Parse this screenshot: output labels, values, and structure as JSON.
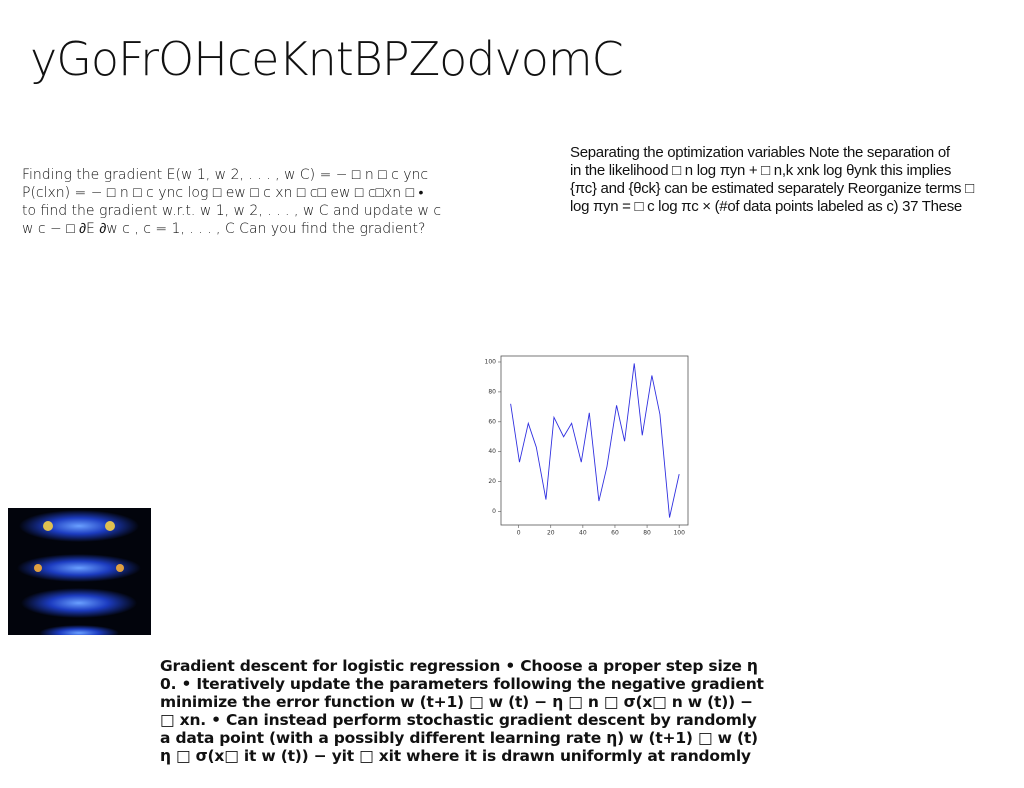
{
  "title": "yGoFrOHceKntBPZodvomC",
  "left_text": [
    "Finding the gradient E(w 1, w 2, . . . , w C) = − □ n □ c ync",
    "P(clxn) = − □ n □ c ync log □ ew □ c xn □ c□ ew □ c□xn □ •",
    "to find the gradient w.r.t. w 1, w 2, . . . , w C and update w c",
    "w c − □ ∂E ∂w c , c = 1, . . . , C Can you find the gradient?"
  ],
  "right_text": [
    "Separating the optimization variables Note the separation of",
    "in the likelihood □ n log πyn + □ n,k xnk log θynk this implies",
    "{πc} and {θck} can be estimated separately Reorganize terms □",
    "log πyn = □ c log πc × (#of data points labeled as c) 37 These"
  ],
  "bottom_text": [
    "Gradient descent for logistic regression • Choose a proper step size η",
    "0. • Iteratively update the parameters following the negative gradient",
    "minimize the error function w (t+1) □ w (t) − η □ n □ σ(x□ n w (t)) −",
    "□ xn. • Can instead perform stochastic gradient descent by randomly",
    "a data point (with a possibly different learning rate η) w (t+1) □ w (t)",
    "η □ σ(x□ it w (t)) − yit □ xit where it is drawn uniformly at randomly"
  ],
  "chart_data": {
    "type": "line",
    "x": [
      -5,
      0.5,
      6,
      11,
      17,
      22,
      28,
      33,
      39,
      44,
      50,
      55,
      61,
      66,
      72,
      77,
      83,
      88,
      94,
      100
    ],
    "series": [
      {
        "color": "#3030e0",
        "values": [
          72,
          33,
          59,
          43,
          8,
          63,
          50,
          59,
          33,
          66,
          7,
          30,
          71,
          47,
          99,
          51,
          91,
          65,
          -4,
          25
        ]
      }
    ],
    "xlim": [
      -11,
      105.5
    ],
    "ylim": [
      -9,
      104
    ],
    "xticks": [
      0,
      20,
      40,
      60,
      80,
      100
    ],
    "yticks": [
      0,
      20,
      40,
      60,
      80,
      100
    ]
  }
}
